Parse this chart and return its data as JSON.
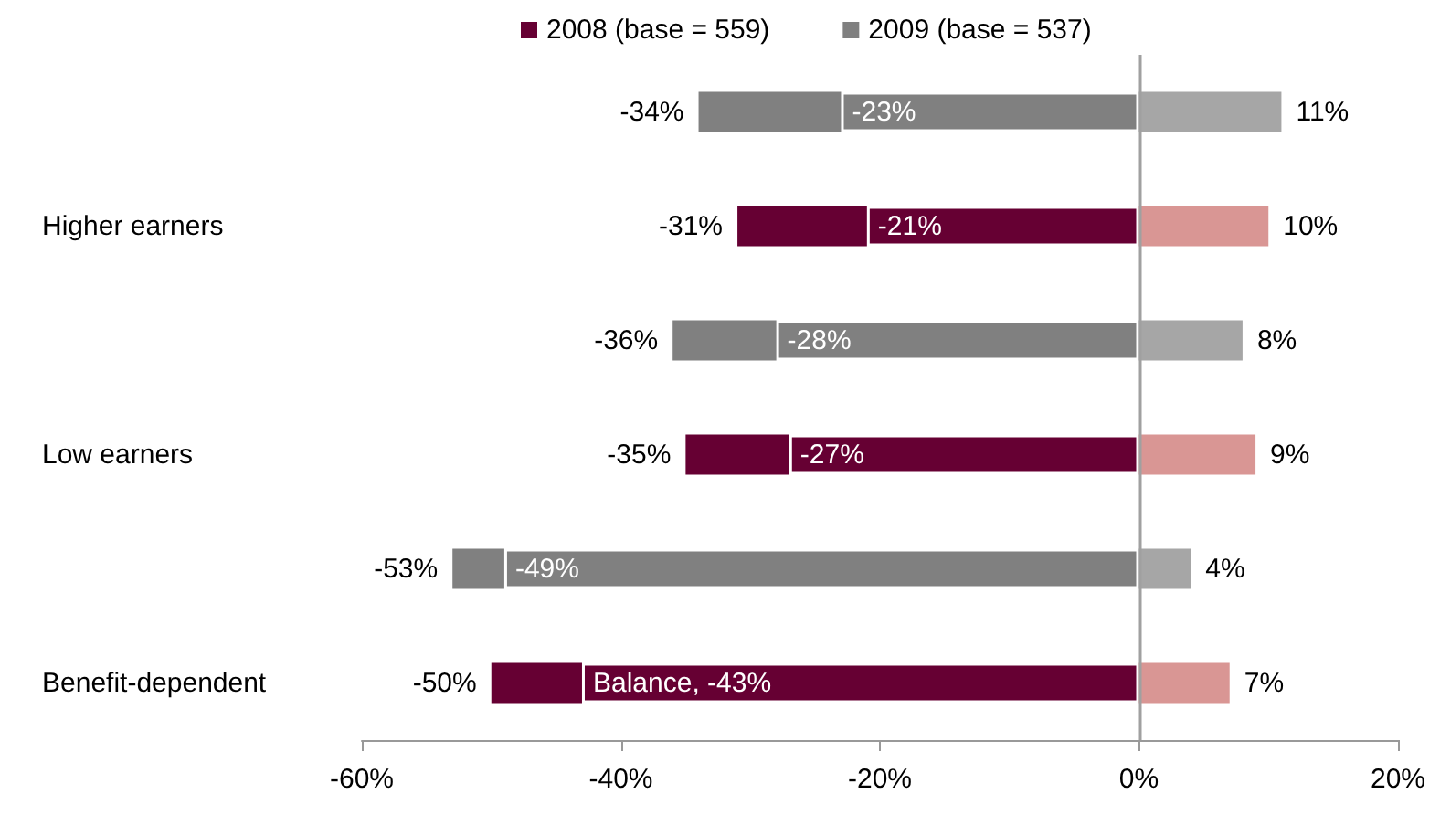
{
  "chart_data": {
    "type": "bar",
    "orientation": "horizontal",
    "stacked": true,
    "categories": [
      null,
      "Higher earners",
      null,
      "Low earners",
      null,
      "Benefit-dependent"
    ],
    "series": [
      {
        "name": "2008 (base = 559)",
        "color": "#660033",
        "values": [
          null,
          -21,
          null,
          -27,
          null,
          -43
        ],
        "value_labels": [
          null,
          "-21%",
          null,
          "-27%",
          null,
          "Balance, -43%"
        ]
      },
      {
        "color": "#660033",
        "values": [
          null,
          -10,
          null,
          -8,
          null,
          -7
        ]
      },
      {
        "color": "#d99694",
        "values": [
          null,
          10,
          null,
          9,
          null,
          7
        ],
        "value_labels": [
          null,
          "10%",
          null,
          "9%",
          null,
          "7%"
        ]
      },
      {
        "name": "2009 (base = 537)",
        "color": "#808080",
        "values": [
          -23,
          null,
          -28,
          null,
          -49,
          null
        ],
        "value_labels": [
          "-23%",
          null,
          "-28%",
          null,
          "-49%",
          null
        ]
      },
      {
        "color": "#808080",
        "values": [
          -11,
          null,
          -8,
          null,
          -4,
          null
        ]
      },
      {
        "color": "#a6a6a6",
        "values": [
          11,
          null,
          8,
          null,
          4,
          null
        ],
        "value_labels": [
          "11%",
          null,
          "8%",
          null,
          "4%",
          null
        ]
      }
    ],
    "annotations": [
      {
        "text": "-34%",
        "x": -34
      },
      {
        "text": "-31%",
        "x": -31,
        "y": "Higher earners"
      },
      {
        "text": "-36%",
        "x": -36
      },
      {
        "text": "-35%",
        "x": -35,
        "y": "Low earners"
      },
      {
        "text": "-53%",
        "x": -53
      },
      {
        "text": "-50%",
        "x": -50,
        "y": "Benefit-dependent"
      }
    ],
    "ref_lines": [
      {
        "axis": "x",
        "value": 0,
        "color": "#a0a0a0"
      }
    ],
    "xlim": [
      -60,
      20
    ],
    "xticks": [
      {
        "value": -60,
        "label": "-60%"
      },
      {
        "value": -40,
        "label": "-40%"
      },
      {
        "value": -20,
        "label": "-20%"
      },
      {
        "value": 0,
        "label": "0%"
      },
      {
        "value": 20,
        "label": "20%"
      }
    ],
    "grid": false,
    "legend": "top"
  }
}
